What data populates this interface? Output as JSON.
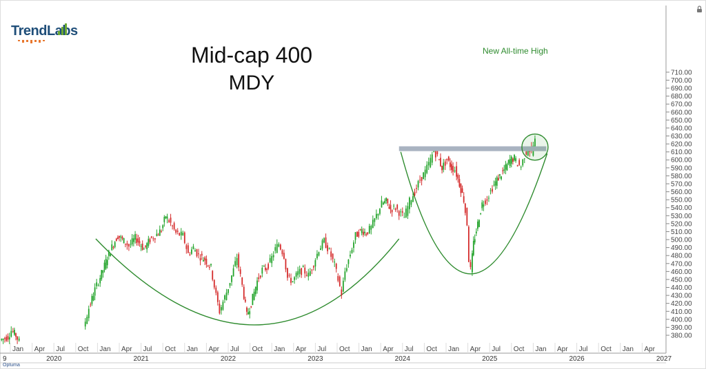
{
  "brand": {
    "name": "TrendLabs"
  },
  "title_line1": "Mid-cap 400",
  "title_line2": "MDY",
  "annotation": "New All-time High",
  "footer": "Optuma",
  "colors": {
    "up": "#22a32a",
    "down": "#d42a2a",
    "arc": "#2e8b2e",
    "resistance": "#a9b3c1",
    "brand": "#1f4e79"
  },
  "chart_data": {
    "type": "candlestick",
    "title": "Mid-cap 400",
    "subtitle": "MDY",
    "ylim": [
      370,
      710
    ],
    "y_ticks": [
      380,
      390,
      400,
      410,
      420,
      430,
      440,
      450,
      460,
      470,
      480,
      490,
      500,
      510,
      520,
      530,
      540,
      550,
      560,
      570,
      580,
      590,
      600,
      610,
      620,
      630,
      640,
      650,
      660,
      670,
      680,
      690,
      700,
      710
    ],
    "month_labels": [
      {
        "label": "Jan",
        "t": 2020.0
      },
      {
        "label": "Apr",
        "t": 2020.25
      },
      {
        "label": "Jul",
        "t": 2020.5
      },
      {
        "label": "Oct",
        "t": 2020.75
      },
      {
        "label": "Jan",
        "t": 2021.0
      },
      {
        "label": "Apr",
        "t": 2021.25
      },
      {
        "label": "Jul",
        "t": 2021.5
      },
      {
        "label": "Oct",
        "t": 2021.75
      },
      {
        "label": "Jan",
        "t": 2022.0
      },
      {
        "label": "Apr",
        "t": 2022.25
      },
      {
        "label": "Jul",
        "t": 2022.5
      },
      {
        "label": "Oct",
        "t": 2022.75
      },
      {
        "label": "Jan",
        "t": 2023.0
      },
      {
        "label": "Apr",
        "t": 2023.25
      },
      {
        "label": "Jul",
        "t": 2023.5
      },
      {
        "label": "Oct",
        "t": 2023.75
      },
      {
        "label": "Jan",
        "t": 2024.0
      },
      {
        "label": "Apr",
        "t": 2024.25
      },
      {
        "label": "Jul",
        "t": 2024.5
      },
      {
        "label": "Oct",
        "t": 2024.75
      },
      {
        "label": "Jan",
        "t": 2025.0
      },
      {
        "label": "Apr",
        "t": 2025.25
      },
      {
        "label": "Jul",
        "t": 2025.5
      },
      {
        "label": "Oct",
        "t": 2025.75
      },
      {
        "label": "Jan",
        "t": 2026.0
      },
      {
        "label": "Apr",
        "t": 2026.25
      },
      {
        "label": "Jul",
        "t": 2026.5
      },
      {
        "label": "Oct",
        "t": 2026.75
      },
      {
        "label": "Jan",
        "t": 2027.0
      },
      {
        "label": "Apr",
        "t": 2027.25
      },
      {
        "label": "Jul",
        "t": 2027.5
      }
    ],
    "year_labels": [
      {
        "label": "9",
        "t": 2019.5
      },
      {
        "label": "2020",
        "t": 2020.5
      },
      {
        "label": "2021",
        "t": 2021.5
      },
      {
        "label": "2022",
        "t": 2022.5
      },
      {
        "label": "2023",
        "t": 2023.5
      },
      {
        "label": "2024",
        "t": 2024.5
      },
      {
        "label": "2025",
        "t": 2025.5
      },
      {
        "label": "2026",
        "t": 2026.5
      },
      {
        "label": "2027",
        "t": 2027.5
      }
    ],
    "price_path": [
      [
        2019.9,
        374
      ],
      [
        2019.99,
        378
      ],
      [
        2020.03,
        386
      ],
      [
        2020.08,
        380
      ],
      [
        2020.12,
        372
      ],
      [
        2020.86,
        390
      ],
      [
        2020.92,
        414
      ],
      [
        2020.97,
        432
      ],
      [
        2021.03,
        448
      ],
      [
        2021.08,
        462
      ],
      [
        2021.13,
        478
      ],
      [
        2021.2,
        495
      ],
      [
        2021.25,
        505
      ],
      [
        2021.32,
        498
      ],
      [
        2021.38,
        492
      ],
      [
        2021.45,
        502
      ],
      [
        2021.5,
        496
      ],
      [
        2021.55,
        488
      ],
      [
        2021.62,
        500
      ],
      [
        2021.68,
        505
      ],
      [
        2021.75,
        512
      ],
      [
        2021.8,
        530
      ],
      [
        2021.86,
        520
      ],
      [
        2021.92,
        508
      ],
      [
        2022.0,
        505
      ],
      [
        2022.06,
        482
      ],
      [
        2022.12,
        490
      ],
      [
        2022.18,
        480
      ],
      [
        2022.25,
        475
      ],
      [
        2022.32,
        465
      ],
      [
        2022.38,
        430
      ],
      [
        2022.42,
        410
      ],
      [
        2022.46,
        422
      ],
      [
        2022.52,
        440
      ],
      [
        2022.58,
        462
      ],
      [
        2022.62,
        478
      ],
      [
        2022.68,
        442
      ],
      [
        2022.73,
        405
      ],
      [
        2022.78,
        420
      ],
      [
        2022.85,
        448
      ],
      [
        2022.91,
        462
      ],
      [
        2022.96,
        465
      ],
      [
        2023.0,
        472
      ],
      [
        2023.06,
        488
      ],
      [
        2023.1,
        495
      ],
      [
        2023.16,
        480
      ],
      [
        2023.2,
        452
      ],
      [
        2023.26,
        448
      ],
      [
        2023.32,
        458
      ],
      [
        2023.38,
        462
      ],
      [
        2023.44,
        455
      ],
      [
        2023.5,
        470
      ],
      [
        2023.56,
        488
      ],
      [
        2023.62,
        498
      ],
      [
        2023.68,
        485
      ],
      [
        2023.74,
        468
      ],
      [
        2023.78,
        450
      ],
      [
        2023.82,
        432
      ],
      [
        2023.86,
        460
      ],
      [
        2023.92,
        482
      ],
      [
        2023.98,
        505
      ],
      [
        2024.05,
        512
      ],
      [
        2024.1,
        508
      ],
      [
        2024.16,
        515
      ],
      [
        2024.22,
        530
      ],
      [
        2024.28,
        545
      ],
      [
        2024.33,
        548
      ],
      [
        2024.38,
        538
      ],
      [
        2024.44,
        540
      ],
      [
        2024.5,
        532
      ],
      [
        2024.54,
        528
      ],
      [
        2024.6,
        548
      ],
      [
        2024.66,
        560
      ],
      [
        2024.72,
        575
      ],
      [
        2024.78,
        585
      ],
      [
        2024.84,
        600
      ],
      [
        2024.88,
        612
      ],
      [
        2024.92,
        604
      ],
      [
        2024.97,
        590
      ],
      [
        2025.03,
        600
      ],
      [
        2025.08,
        590
      ],
      [
        2025.12,
        588
      ],
      [
        2025.17,
        570
      ],
      [
        2025.22,
        550
      ],
      [
        2025.26,
        520
      ],
      [
        2025.28,
        475
      ],
      [
        2025.3,
        462
      ],
      [
        2025.33,
        495
      ],
      [
        2025.38,
        520
      ],
      [
        2025.43,
        545
      ],
      [
        2025.49,
        552
      ],
      [
        2025.55,
        565
      ],
      [
        2025.6,
        575
      ],
      [
        2025.65,
        582
      ],
      [
        2025.7,
        590
      ],
      [
        2025.75,
        600
      ],
      [
        2025.8,
        602
      ],
      [
        2025.84,
        595
      ],
      [
        2025.88,
        592
      ],
      [
        2025.92,
        606
      ],
      [
        2025.96,
        614
      ],
      [
        2026.0,
        610
      ],
      [
        2026.02,
        618
      ],
      [
        2026.04,
        624
      ]
    ],
    "resistance_level": 614,
    "resistance_range": [
      2024.46,
      2026.15
    ],
    "breakout_marker": {
      "t": 2026.02,
      "y": 616
    },
    "arcs": [
      {
        "name": "cup 1",
        "start": [
          2020.98,
          501
        ],
        "bottom": [
          2022.8,
          393
        ],
        "end": [
          2024.46,
          501
        ]
      },
      {
        "name": "cup 2",
        "start": [
          2024.48,
          610
        ],
        "bottom": [
          2025.28,
          457
        ],
        "end": [
          2026.16,
          608
        ]
      }
    ]
  }
}
